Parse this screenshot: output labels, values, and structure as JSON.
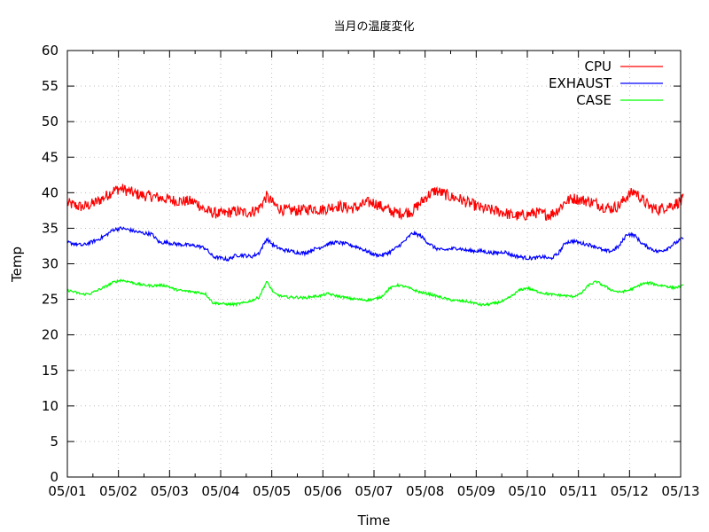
{
  "chart_data": {
    "type": "line",
    "title": "当月の温度変化",
    "xlabel": "Time",
    "ylabel": "Temp",
    "ylim": [
      0,
      60
    ],
    "yticks": [
      "0",
      "5",
      "10",
      "15",
      "20",
      "25",
      "30",
      "35",
      "40",
      "45",
      "50",
      "55",
      "60"
    ],
    "xlim": [
      0,
      12
    ],
    "xtick_labels": [
      "05/01",
      "05/02",
      "05/03",
      "05/04",
      "05/05",
      "05/06",
      "05/07",
      "05/08",
      "05/09",
      "05/10",
      "05/11",
      "05/12",
      "05/13"
    ],
    "grid": true,
    "legend_position": "top-right",
    "x_unit": "day offset from 05/01",
    "series": [
      {
        "name": "CPU",
        "color": "#ff0000",
        "noise": 1.6,
        "x": [
          0,
          0.15,
          0.3,
          0.45,
          0.6,
          0.75,
          0.9,
          1.05,
          1.2,
          1.35,
          1.5,
          1.65,
          1.8,
          1.95,
          2.1,
          2.25,
          2.4,
          2.55,
          2.7,
          2.85,
          3.0,
          3.15,
          3.3,
          3.45,
          3.6,
          3.75,
          3.9,
          4.05,
          4.2,
          4.35,
          4.5,
          4.65,
          4.8,
          4.95,
          5.1,
          5.25,
          5.4,
          5.55,
          5.7,
          5.85,
          6.0,
          6.15,
          6.3,
          6.45,
          6.6,
          6.75,
          6.9,
          7.05,
          7.2,
          7.35,
          7.5,
          7.65,
          7.8,
          7.95,
          8.1,
          8.25,
          8.4,
          8.55,
          8.7,
          8.85,
          9.0,
          9.15,
          9.3,
          9.45,
          9.6,
          9.75,
          9.9,
          10.05,
          10.2,
          10.35,
          10.5,
          10.65,
          10.8,
          10.95,
          11.1,
          11.25,
          11.4,
          11.55,
          11.7,
          11.85,
          12.0,
          12.05
        ],
        "values": [
          38.5,
          38.2,
          38.0,
          38.3,
          38.8,
          39.5,
          40.3,
          40.6,
          40.2,
          39.8,
          39.6,
          39.5,
          39.3,
          39.1,
          38.9,
          38.8,
          38.8,
          38.5,
          37.5,
          37.2,
          37.0,
          37.2,
          37.4,
          37.2,
          37.3,
          37.8,
          39.5,
          38.3,
          37.6,
          37.5,
          37.5,
          37.6,
          37.8,
          37.6,
          37.8,
          38.2,
          38.0,
          37.8,
          38.0,
          38.6,
          38.6,
          38.0,
          37.5,
          37.1,
          37.2,
          37.4,
          38.5,
          39.6,
          40.3,
          39.9,
          39.4,
          39.2,
          38.7,
          38.3,
          37.8,
          37.6,
          37.4,
          37.2,
          36.8,
          36.7,
          36.9,
          37.2,
          37.0,
          36.9,
          37.6,
          38.8,
          39.2,
          39.0,
          38.8,
          38.5,
          38.0,
          37.8,
          38.2,
          39.5,
          40.2,
          39.0,
          38.0,
          37.6,
          38.0,
          38.3,
          38.8,
          39.1
        ]
      },
      {
        "name": "EXHAUST",
        "color": "#0000ff",
        "noise": 0.5,
        "x": [
          0,
          0.15,
          0.3,
          0.45,
          0.6,
          0.75,
          0.9,
          1.05,
          1.2,
          1.35,
          1.5,
          1.65,
          1.8,
          1.95,
          2.1,
          2.25,
          2.4,
          2.55,
          2.7,
          2.85,
          3.0,
          3.15,
          3.3,
          3.45,
          3.6,
          3.75,
          3.9,
          4.05,
          4.2,
          4.35,
          4.5,
          4.65,
          4.8,
          4.95,
          5.1,
          5.25,
          5.4,
          5.55,
          5.7,
          5.85,
          6.0,
          6.15,
          6.3,
          6.45,
          6.6,
          6.75,
          6.9,
          7.05,
          7.2,
          7.35,
          7.5,
          7.65,
          7.8,
          7.95,
          8.1,
          8.25,
          8.4,
          8.55,
          8.7,
          8.85,
          9.0,
          9.15,
          9.3,
          9.45,
          9.6,
          9.75,
          9.9,
          10.05,
          10.2,
          10.35,
          10.5,
          10.65,
          10.8,
          10.95,
          11.1,
          11.25,
          11.4,
          11.55,
          11.7,
          11.85,
          12.0,
          12.05
        ],
        "values": [
          33.0,
          32.8,
          32.6,
          33.0,
          33.4,
          34.0,
          34.8,
          35.0,
          34.8,
          34.5,
          34.3,
          34.2,
          33.0,
          33.0,
          32.8,
          32.7,
          32.6,
          32.5,
          32.2,
          31.0,
          30.8,
          30.6,
          31.2,
          31.2,
          31.0,
          31.5,
          33.5,
          32.5,
          32.0,
          31.8,
          31.6,
          31.5,
          32.0,
          32.3,
          32.8,
          33.0,
          32.9,
          32.6,
          32.3,
          31.8,
          31.3,
          31.2,
          31.6,
          32.3,
          33.2,
          34.3,
          34.0,
          33.0,
          32.2,
          31.9,
          32.1,
          32.2,
          31.9,
          31.8,
          31.8,
          31.6,
          31.5,
          31.7,
          31.2,
          31.0,
          30.8,
          30.8,
          31.0,
          30.7,
          31.4,
          33.0,
          33.2,
          32.9,
          32.7,
          32.4,
          31.8,
          31.8,
          32.5,
          34.2,
          34.0,
          32.8,
          32.2,
          31.7,
          32.0,
          32.7,
          33.4,
          33.6
        ]
      },
      {
        "name": "CASE",
        "color": "#00ff00",
        "noise": 0.35,
        "x": [
          0,
          0.15,
          0.3,
          0.45,
          0.6,
          0.75,
          0.9,
          1.05,
          1.2,
          1.35,
          1.5,
          1.65,
          1.8,
          1.95,
          2.1,
          2.25,
          2.4,
          2.55,
          2.7,
          2.85,
          3.0,
          3.15,
          3.3,
          3.45,
          3.6,
          3.75,
          3.9,
          4.05,
          4.2,
          4.35,
          4.5,
          4.65,
          4.8,
          4.95,
          5.1,
          5.25,
          5.4,
          5.55,
          5.7,
          5.85,
          6.0,
          6.15,
          6.3,
          6.45,
          6.6,
          6.75,
          6.9,
          7.05,
          7.2,
          7.35,
          7.5,
          7.65,
          7.8,
          7.95,
          8.1,
          8.25,
          8.4,
          8.55,
          8.7,
          8.85,
          9.0,
          9.15,
          9.3,
          9.45,
          9.6,
          9.75,
          9.9,
          10.05,
          10.2,
          10.35,
          10.5,
          10.65,
          10.8,
          10.95,
          11.1,
          11.25,
          11.4,
          11.55,
          11.7,
          11.85,
          12.0,
          12.05
        ],
        "values": [
          26.3,
          26.0,
          25.7,
          25.8,
          26.3,
          26.8,
          27.4,
          27.7,
          27.5,
          27.2,
          27.0,
          26.9,
          27.0,
          26.9,
          26.4,
          26.2,
          26.1,
          26.0,
          25.8,
          24.5,
          24.4,
          24.3,
          24.3,
          24.5,
          24.8,
          25.3,
          27.5,
          25.8,
          25.4,
          25.3,
          25.3,
          25.2,
          25.4,
          25.5,
          25.8,
          25.5,
          25.3,
          25.1,
          25.0,
          24.9,
          25.0,
          25.4,
          26.5,
          27.0,
          26.8,
          26.4,
          26.0,
          25.8,
          25.5,
          25.2,
          24.9,
          24.8,
          24.7,
          24.5,
          24.2,
          24.3,
          24.5,
          24.8,
          25.5,
          26.3,
          26.6,
          26.2,
          25.9,
          25.7,
          25.6,
          25.5,
          25.4,
          25.8,
          27.0,
          27.5,
          26.9,
          26.3,
          26.0,
          26.2,
          26.6,
          27.2,
          27.3,
          27.0,
          26.9,
          26.6,
          26.8,
          26.9
        ]
      }
    ]
  }
}
